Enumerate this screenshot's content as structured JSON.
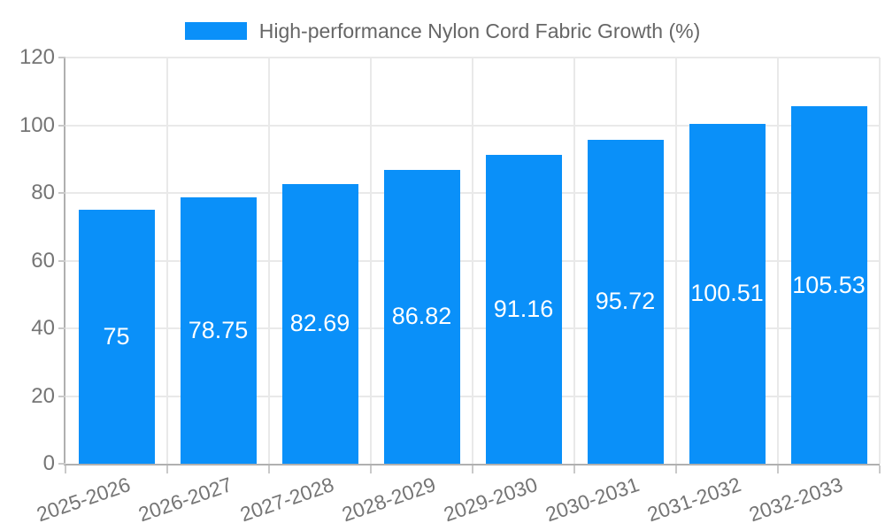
{
  "legend": {
    "label": "High-performance Nylon Cord Fabric Growth (%)"
  },
  "chart_data": {
    "type": "bar",
    "title": "High-performance Nylon Cord Fabric Growth (%)",
    "categories": [
      "2025-2026",
      "2026-2027",
      "2027-2028",
      "2028-2029",
      "2029-2030",
      "2030-2031",
      "2031-2032",
      "2032-2033"
    ],
    "values": [
      75,
      78.75,
      82.69,
      86.82,
      91.16,
      95.72,
      100.51,
      105.53
    ],
    "value_labels": [
      "75",
      "78.75",
      "82.69",
      "86.82",
      "91.16",
      "95.72",
      "100.51",
      "105.53"
    ],
    "xlabel": "",
    "ylabel": "",
    "ylim": [
      0,
      120
    ],
    "y_ticks": [
      0,
      20,
      40,
      60,
      80,
      100,
      120
    ],
    "grid": true,
    "legend_position": "top",
    "colors": {
      "bar": "#0a90f9",
      "bar_label": "#ffffff",
      "grid": "#e9e9e9",
      "axis": "#b0b0b0",
      "tick": "#c9c9c9",
      "tick_label": "#757575",
      "legend_text": "#666666",
      "background": "#ffffff"
    }
  }
}
